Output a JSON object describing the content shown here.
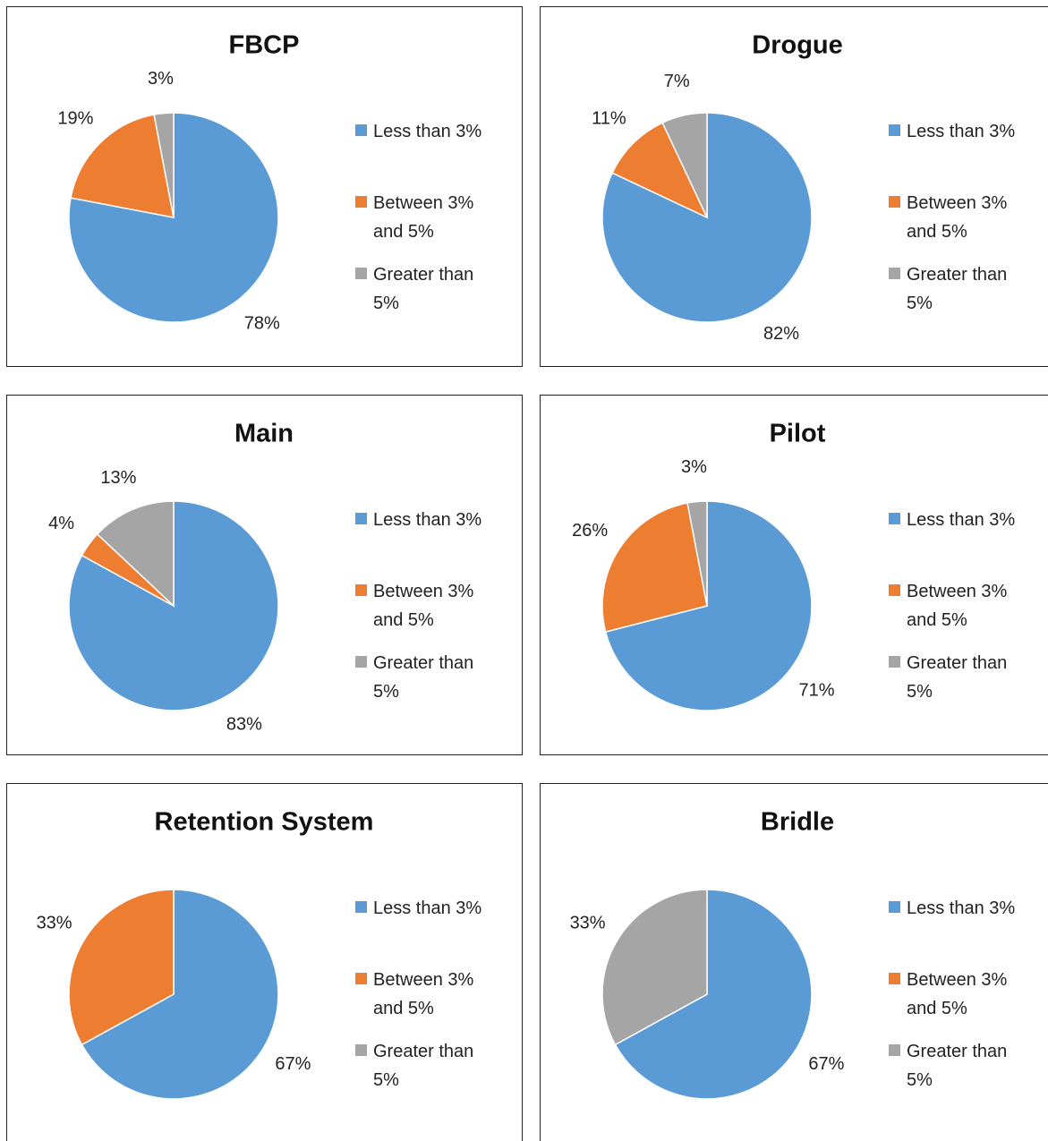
{
  "chart_data": [
    {
      "type": "pie",
      "title": "FBCP",
      "categories": [
        "Less than 3%",
        "Between 3% and 5%",
        "Greater than 5%"
      ],
      "values": [
        78,
        19,
        3
      ],
      "value_labels": [
        "78%",
        "19%",
        "3%"
      ],
      "colors": [
        "#5b9bd5",
        "#ed7d31",
        "#a5a5a5"
      ],
      "legend": "right"
    },
    {
      "type": "pie",
      "title": "Drogue",
      "categories": [
        "Less than 3%",
        "Between 3% and 5%",
        "Greater than 5%"
      ],
      "values": [
        82,
        11,
        7
      ],
      "value_labels": [
        "82%",
        "11%",
        "7%"
      ],
      "colors": [
        "#5b9bd5",
        "#ed7d31",
        "#a5a5a5"
      ],
      "legend": "right"
    },
    {
      "type": "pie",
      "title": "Main",
      "categories": [
        "Less than 3%",
        "Between 3% and 5%",
        "Greater than 5%"
      ],
      "values": [
        83,
        4,
        13
      ],
      "value_labels": [
        "83%",
        "4%",
        "13%"
      ],
      "colors": [
        "#5b9bd5",
        "#ed7d31",
        "#a5a5a5"
      ],
      "legend": "right"
    },
    {
      "type": "pie",
      "title": "Pilot",
      "categories": [
        "Less than 3%",
        "Between 3% and 5%",
        "Greater than 5%"
      ],
      "values": [
        71,
        26,
        3
      ],
      "value_labels": [
        "71%",
        "26%",
        "3%"
      ],
      "colors": [
        "#5b9bd5",
        "#ed7d31",
        "#a5a5a5"
      ],
      "legend": "right"
    },
    {
      "type": "pie",
      "title": "Retention System",
      "categories": [
        "Less than 3%",
        "Between 3% and 5%",
        "Greater than 5%"
      ],
      "values": [
        67,
        33,
        0
      ],
      "value_labels": [
        "67%",
        "33%",
        null
      ],
      "colors": [
        "#5b9bd5",
        "#ed7d31",
        "#a5a5a5"
      ],
      "legend": "right"
    },
    {
      "type": "pie",
      "title": "Bridle",
      "categories": [
        "Less than 3%",
        "Between 3% and 5%",
        "Greater than 5%"
      ],
      "values": [
        67,
        0,
        33
      ],
      "value_labels": [
        "67%",
        null,
        "33%"
      ],
      "colors": [
        "#5b9bd5",
        "#ed7d31",
        "#a5a5a5"
      ],
      "legend": "right"
    }
  ]
}
